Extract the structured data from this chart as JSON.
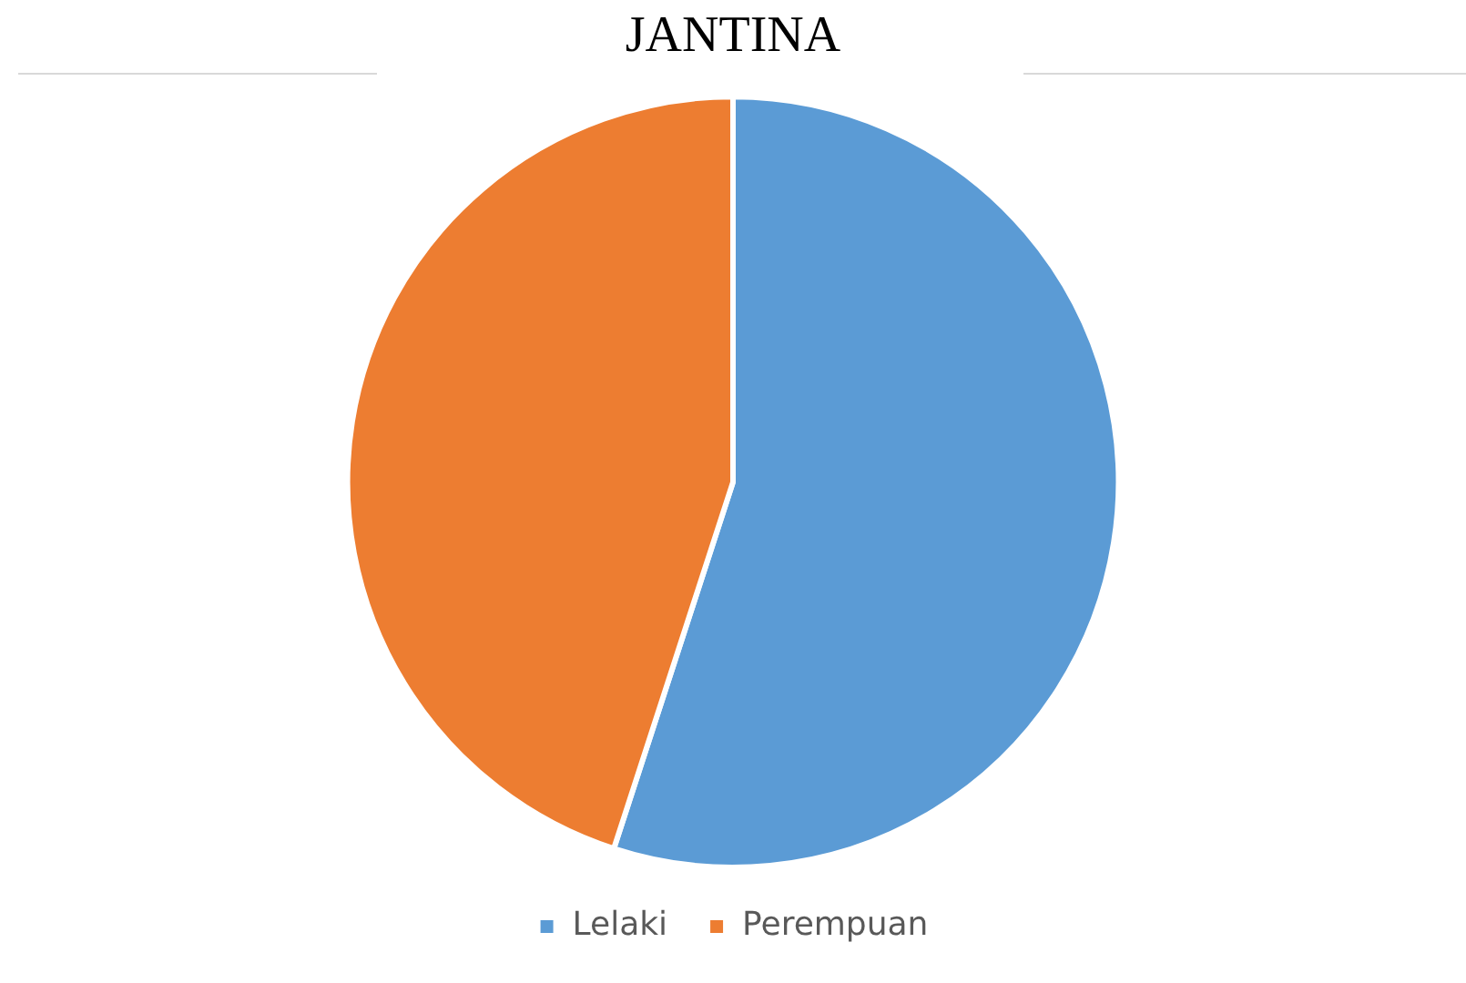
{
  "chart_data": {
    "type": "pie",
    "title": "JANTINA",
    "categories": [
      "Lelaki",
      "Perempuan"
    ],
    "values": [
      55,
      45
    ],
    "colors": [
      "#5b9bd5",
      "#ed7d31"
    ],
    "legend": "bottom"
  }
}
